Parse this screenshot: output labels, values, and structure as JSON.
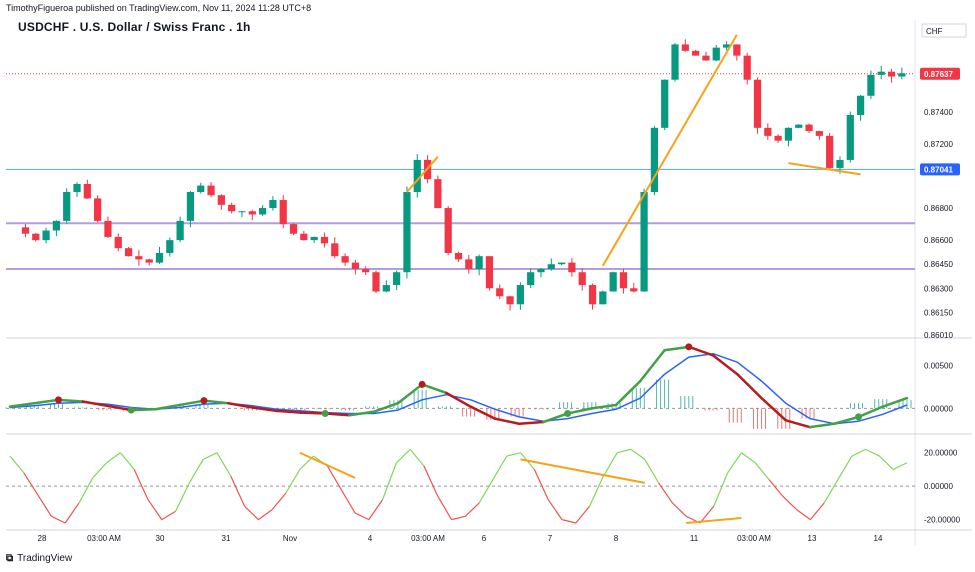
{
  "header": {
    "published": "TimothyFigueroa published on TradingView.com, Nov 11, 2024 11:28 UTC+8"
  },
  "title": "USDCHF . U.S. Dollar / Swiss Franc . 1h",
  "currency": "CHF",
  "footer": {
    "brand": "TradingView",
    "logo_icon": "tradingview-logo-icon"
  },
  "colors": {
    "up": "#089981",
    "down": "#f23645",
    "orange": "#f7a21b",
    "purple": "#b39ddb",
    "hline": "#5aa9d6",
    "macd_green": "#43a047",
    "macd_red": "#b71c1c",
    "signal": "#2962ff",
    "osc_green": "#7ed957",
    "osc_red": "#ef5350"
  },
  "chart_data": [
    {
      "type": "candlestick",
      "title": "USDCHF . U.S. Dollar / Swiss Franc . 1h",
      "y_ticks": [
        "0.87400",
        "0.87200",
        "0.86800",
        "0.86600",
        "0.86450",
        "0.86300",
        "0.86150",
        "0.86010"
      ],
      "price_tags": [
        {
          "label": "0.87637",
          "value": 0.87637,
          "color": "#f23645"
        },
        {
          "label": "0.87041",
          "value": 0.87041,
          "color": "#2962ff"
        }
      ],
      "ylim": [
        0.8599,
        0.8786
      ],
      "x_ticks": [
        "28",
        "03:00 AM",
        "30",
        "31",
        "Nov",
        "4",
        "03:00 AM",
        "6",
        "7",
        "8",
        "11",
        "03:00 AM",
        "13",
        "14"
      ],
      "horizontal_lines": [
        {
          "value": 0.86705,
          "color": "#b39ddb"
        },
        {
          "value": 0.8642,
          "color": "#b39ddb"
        },
        {
          "value": 0.87041,
          "color": "#5aa9d6"
        },
        {
          "value": 0.87637,
          "color": "#f23645",
          "style": "dotted"
        }
      ],
      "ohlc_path": [
        0.8668,
        0.8664,
        0.866,
        0.8666,
        0.8672,
        0.869,
        0.8695,
        0.8686,
        0.8672,
        0.8662,
        0.8655,
        0.865,
        0.8648,
        0.8646,
        0.8652,
        0.866,
        0.8672,
        0.869,
        0.8694,
        0.8688,
        0.8682,
        0.8678,
        0.8678,
        0.8676,
        0.868,
        0.8685,
        0.867,
        0.8664,
        0.866,
        0.8662,
        0.8658,
        0.865,
        0.8646,
        0.8642,
        0.864,
        0.8628,
        0.8632,
        0.864,
        0.869,
        0.871,
        0.8698,
        0.868,
        0.8652,
        0.8648,
        0.8642,
        0.865,
        0.863,
        0.8625,
        0.862,
        0.8632,
        0.864,
        0.8642,
        0.8645,
        0.8646,
        0.864,
        0.8632,
        0.862,
        0.8628,
        0.864,
        0.863,
        0.8628,
        0.869,
        0.873,
        0.876,
        0.8782,
        0.8778,
        0.8775,
        0.8772,
        0.878,
        0.8782,
        0.8775,
        0.876,
        0.873,
        0.8725,
        0.8722,
        0.873,
        0.8732,
        0.8728,
        0.8725,
        0.8705,
        0.871,
        0.8738,
        0.875,
        0.8763,
        0.8765,
        0.8762,
        0.8764
      ],
      "trend_lines": [
        {
          "from_index": 38,
          "from": 0.869,
          "to_index": 41,
          "to": 0.8712,
          "color": "#f7a21b"
        },
        {
          "from_index": 57,
          "from": 0.8644,
          "to_index": 70,
          "to": 0.8788,
          "color": "#f7a21b"
        },
        {
          "from_index": 75,
          "from": 0.8708,
          "to_index": 82,
          "to": 0.8701,
          "color": "#f7a21b"
        }
      ]
    },
    {
      "type": "macd",
      "y_ticks": [
        "0.00500",
        "0.00000"
      ],
      "ylim": [
        -0.003,
        0.008
      ],
      "macd": [
        0.0002,
        0.0006,
        0.001,
        0.0008,
        0.0003,
        -0.0002,
        -0.0001,
        0.0004,
        0.0009,
        0.0006,
        0.0001,
        -0.0003,
        -0.0005,
        -0.0006,
        -0.0008,
        -0.0004,
        0.0006,
        0.0028,
        0.0018,
        0.0002,
        -0.0012,
        -0.0018,
        -0.0016,
        -0.0006,
        0.0,
        0.0004,
        0.0032,
        0.0068,
        0.0072,
        0.0062,
        0.004,
        0.0012,
        -0.0014,
        -0.0022,
        -0.0018,
        -0.001,
        0.0002,
        0.0012
      ],
      "signal": [
        0.0001,
        0.0003,
        0.0006,
        0.0007,
        0.0005,
        0.0001,
        -0.0001,
        0.0001,
        0.0005,
        0.0006,
        0.0003,
        -0.0001,
        -0.0003,
        -0.0005,
        -0.0006,
        -0.0006,
        -0.0002,
        0.001,
        0.0016,
        0.001,
        -0.0001,
        -0.001,
        -0.0015,
        -0.0012,
        -0.0006,
        -0.0001,
        0.0012,
        0.004,
        0.006,
        0.0064,
        0.0054,
        0.0032,
        0.0006,
        -0.0012,
        -0.0018,
        -0.0015,
        -0.0007,
        0.0004
      ],
      "cross_down_index": [
        2,
        8,
        17,
        28
      ],
      "cross_up_index": [
        5,
        13,
        23,
        35
      ]
    },
    {
      "type": "oscillator",
      "y_ticks": [
        "20.00000",
        "0.00000",
        "-20.00000"
      ],
      "ylim": [
        -25,
        30
      ],
      "values": [
        18,
        8,
        -5,
        -18,
        -22,
        -10,
        5,
        14,
        20,
        10,
        -8,
        -20,
        -15,
        2,
        16,
        20,
        6,
        -12,
        -20,
        -14,
        -4,
        10,
        18,
        12,
        -2,
        -16,
        -20,
        -8,
        14,
        22,
        12,
        -6,
        -20,
        -18,
        -10,
        4,
        18,
        20,
        10,
        -8,
        -20,
        -22,
        -12,
        6,
        20,
        22,
        16,
        2,
        -10,
        -18,
        -22,
        -12,
        8,
        20,
        14,
        4,
        -6,
        -14,
        -20,
        -10,
        4,
        18,
        22,
        18,
        10,
        14
      ],
      "trend_lines": [
        {
          "from_index": 21,
          "from": 20,
          "to_index": 25,
          "to": 5
        },
        {
          "from_index": 37,
          "from": 16,
          "to_index": 46,
          "to": 2
        },
        {
          "from_index": 49,
          "from": -22,
          "to_index": 53,
          "to": -19
        }
      ]
    }
  ]
}
